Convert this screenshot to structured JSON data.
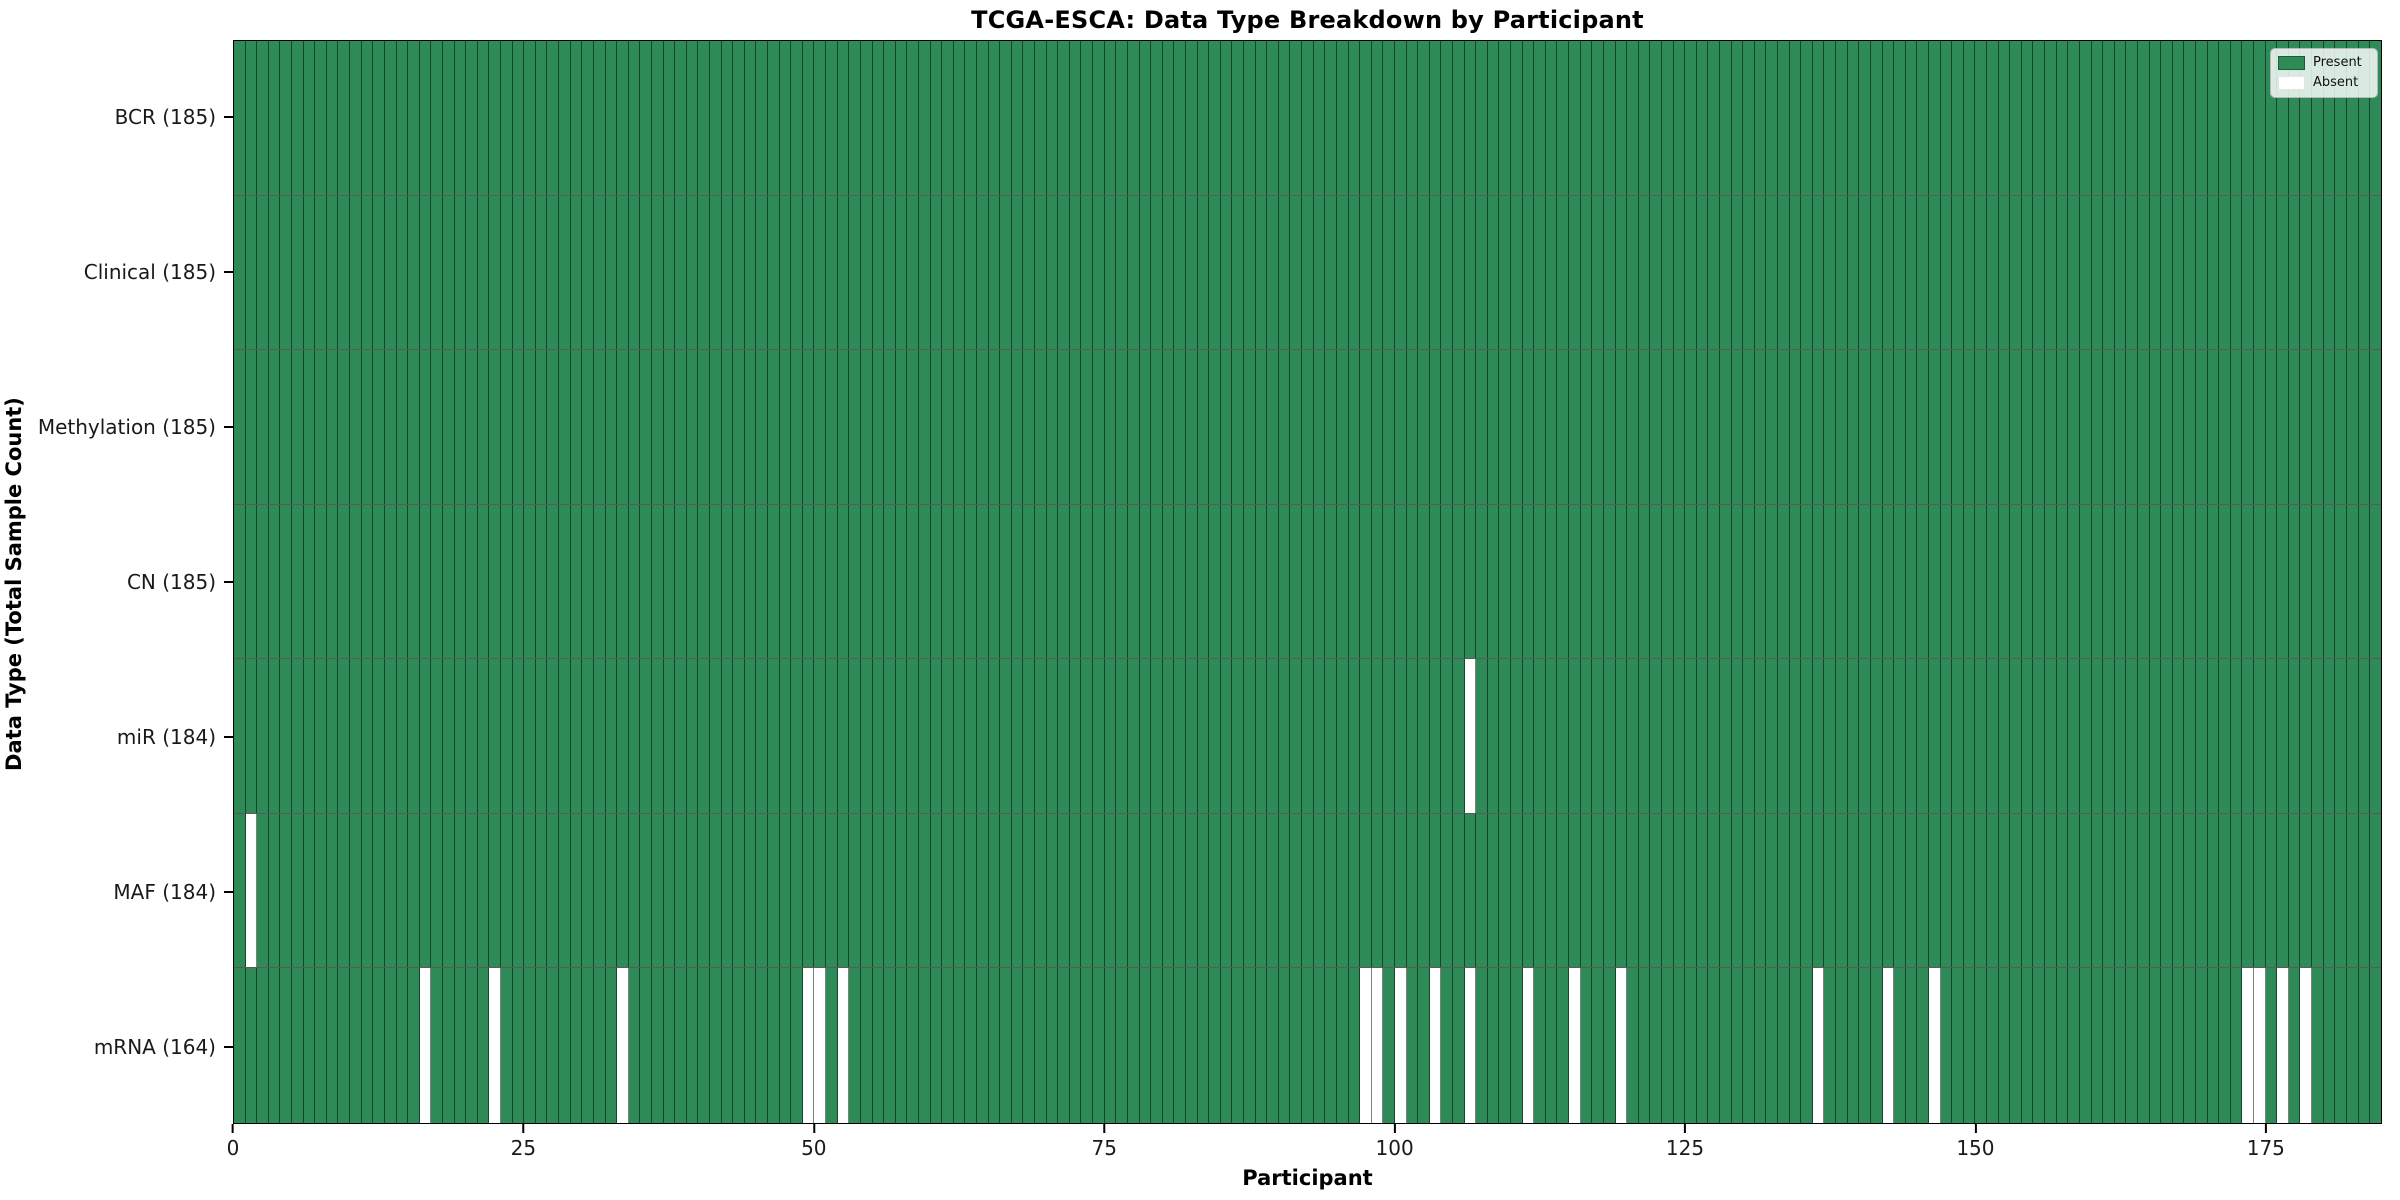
{
  "title": "TCGA-ESCA: Data Type Breakdown by Participant",
  "axes": {
    "xlabel": "Participant",
    "ylabel": "Data Type (Total Sample Count)"
  },
  "legend": {
    "present_label": "Present",
    "absent_label": "Absent"
  },
  "colors": {
    "present": "#2e8b57",
    "absent": "#ffffff",
    "cell_edge": "rgba(0,0,0,0.5)",
    "row_edge": "rgba(0,0,0,0.65)",
    "spine": "#000000",
    "legend_present_edge": "#1e5c39",
    "legend_absent_edge": "#e4e4e4"
  },
  "chart_data": {
    "type": "heatmap",
    "title": "TCGA-ESCA: Data Type Breakdown by Participant",
    "xlabel": "Participant",
    "ylabel": "Data Type (Total Sample Count)",
    "n_participants": 185,
    "x_ticks": [
      0,
      25,
      50,
      75,
      100,
      125,
      150,
      175
    ],
    "value_encoding": {
      "present": 1,
      "absent": 0
    },
    "legend_entries": [
      "Present",
      "Absent"
    ],
    "legend_position": "upper right",
    "rows": [
      {
        "data_type": "BCR",
        "total": 185,
        "label": "BCR (185)",
        "absent_participants": []
      },
      {
        "data_type": "Clinical",
        "total": 185,
        "label": "Clinical (185)",
        "absent_participants": []
      },
      {
        "data_type": "Methylation",
        "total": 185,
        "label": "Methylation (185)",
        "absent_participants": []
      },
      {
        "data_type": "CN",
        "total": 185,
        "label": "CN (185)",
        "absent_participants": []
      },
      {
        "data_type": "miR",
        "total": 184,
        "label": "miR (184)",
        "absent_participants": [
          106
        ]
      },
      {
        "data_type": "MAF",
        "total": 184,
        "label": "MAF (184)",
        "absent_participants": [
          1
        ]
      },
      {
        "data_type": "mRNA",
        "total": 164,
        "label": "mRNA (164)",
        "absent_participants": [
          16,
          22,
          33,
          49,
          50,
          52,
          97,
          98,
          100,
          103,
          106,
          111,
          115,
          119,
          136,
          142,
          146,
          173,
          174,
          176,
          178
        ]
      }
    ]
  }
}
